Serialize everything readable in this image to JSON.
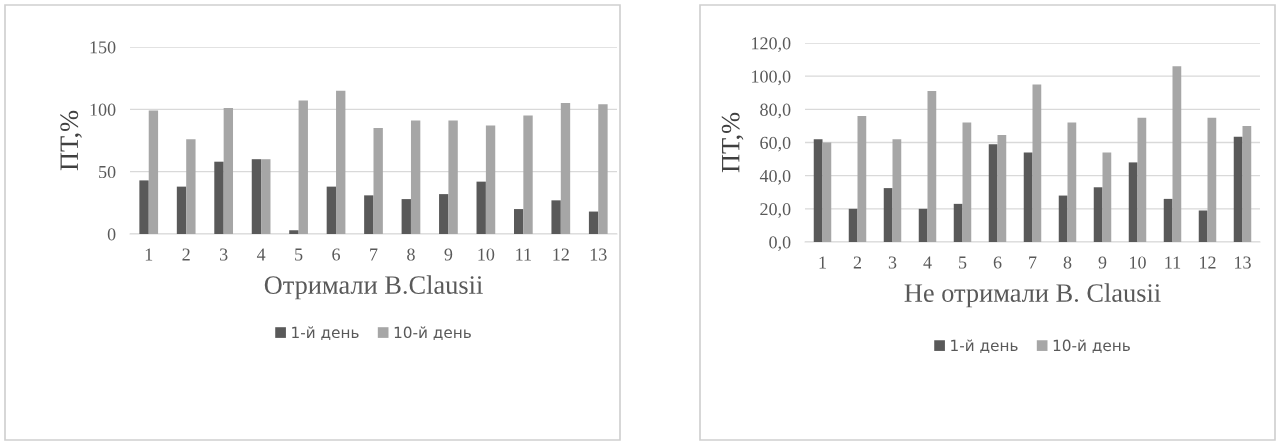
{
  "chart_data": [
    {
      "type": "bar",
      "xlabel": "Отримали B.Clausii",
      "ylabel": "ПТ,%",
      "categories": [
        "1",
        "2",
        "3",
        "4",
        "5",
        "6",
        "7",
        "8",
        "9",
        "10",
        "11",
        "12",
        "13"
      ],
      "series": [
        {
          "name": "1-й день",
          "color": "#595959",
          "values": [
            43,
            38,
            58,
            60,
            3,
            38,
            31,
            28,
            32,
            42,
            20,
            27,
            18
          ]
        },
        {
          "name": "10-й день",
          "color": "#a6a6a6",
          "values": [
            99,
            76,
            101,
            60,
            107,
            115,
            85,
            91,
            91,
            87,
            95,
            105,
            104
          ]
        }
      ],
      "ylim": [
        0,
        150
      ],
      "yticks": [
        0,
        50,
        100,
        150
      ],
      "grid": "y",
      "legend": "bottom"
    },
    {
      "type": "bar",
      "xlabel": "Не отримали B. Clausii",
      "ylabel": "ПТ,%",
      "categories": [
        "1",
        "2",
        "3",
        "4",
        "5",
        "6",
        "7",
        "8",
        "9",
        "10",
        "11",
        "12",
        "13"
      ],
      "series": [
        {
          "name": "1-й день",
          "color": "#595959",
          "values": [
            62,
            20,
            32.5,
            20,
            23,
            59,
            54,
            28,
            33,
            48,
            26,
            19,
            63.5
          ]
        },
        {
          "name": "10-й день",
          "color": "#a6a6a6",
          "values": [
            60,
            76,
            62,
            91,
            72,
            64.5,
            95,
            72,
            54,
            75,
            106,
            75,
            70
          ]
        }
      ],
      "ylim": [
        0,
        120
      ],
      "yticks": [
        {
          "value": 0,
          "label": "0,0"
        },
        {
          "value": 20,
          "label": "20,0"
        },
        {
          "value": 40,
          "label": "40,0"
        },
        {
          "value": 60,
          "label": "60,0"
        },
        {
          "value": 80,
          "label": "80,0"
        },
        {
          "value": 100,
          "label": "100,0"
        },
        {
          "value": 120,
          "label": "120,0"
        }
      ],
      "grid": "y",
      "legend": "bottom"
    }
  ]
}
